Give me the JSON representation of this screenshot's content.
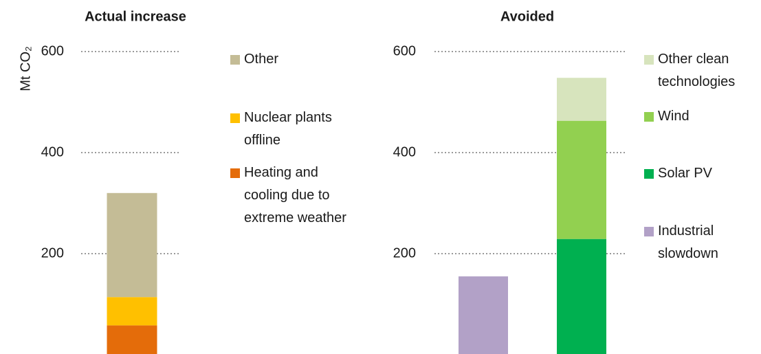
{
  "chart_data": [
    {
      "type": "bar",
      "stacked": true,
      "title": "Actual increase",
      "ylabel": "Mt CO₂",
      "categories": [
        null
      ],
      "series": [
        {
          "name": "Heating and cooling due to extreme weather",
          "color": "#e46c0a",
          "values": [
            58
          ]
        },
        {
          "name": "Nuclear plants offline",
          "color": "#ffc000",
          "values": [
            56
          ]
        },
        {
          "name": "Other",
          "color": "#c4bc96",
          "values": [
            206
          ]
        }
      ],
      "ylim": [
        0,
        600
      ],
      "yticks": [
        200,
        400,
        600
      ],
      "grid": true
    },
    {
      "type": "bar",
      "stacked": true,
      "title": "Avoided",
      "categories": [
        null,
        null
      ],
      "series": [
        {
          "name": "Industrial slowdown",
          "color": "#b2a1c7",
          "values": [
            155,
            null
          ]
        },
        {
          "name": "Solar PV",
          "color": "#00b050",
          "values": [
            null,
            229
          ]
        },
        {
          "name": "Wind",
          "color": "#92d050",
          "values": [
            null,
            234
          ]
        },
        {
          "name": "Other clean technologies",
          "color": "#d7e4bd",
          "values": [
            null,
            85
          ]
        }
      ],
      "ylim": [
        0,
        600
      ],
      "yticks": [
        200,
        400,
        600
      ],
      "grid": true
    }
  ]
}
